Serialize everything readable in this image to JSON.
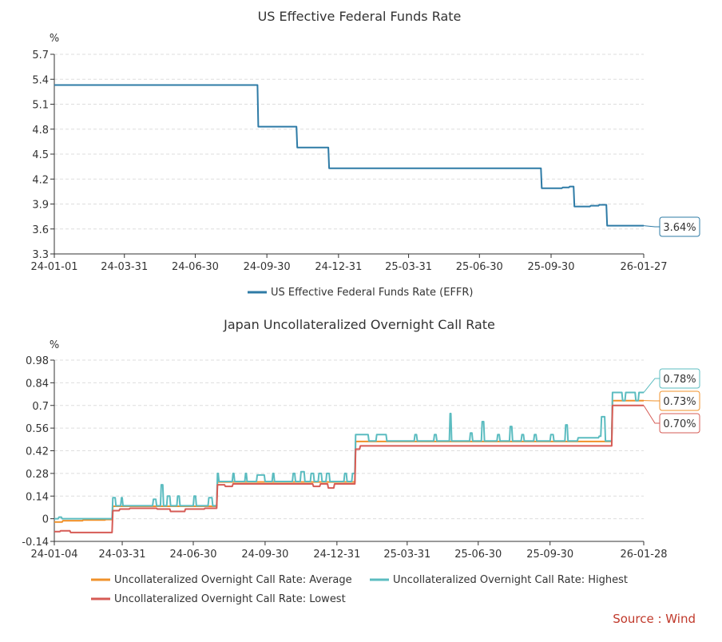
{
  "source": "Source : Wind",
  "chart_data": [
    {
      "type": "line",
      "title": "US Effective Federal Funds Rate",
      "ylabel": "%",
      "ylim": [
        3.3,
        5.7
      ],
      "yticks": [
        "3.3",
        "3.6",
        "3.9",
        "4.2",
        "4.5",
        "4.8",
        "5.1",
        "5.4",
        "5.7"
      ],
      "xlim": [
        "2024-01-01",
        "2026-01-27"
      ],
      "xticks": [
        {
          "label": "24-01-01",
          "date": "2024-01-01"
        },
        {
          "label": "24-03-31",
          "date": "2024-03-31"
        },
        {
          "label": "24-06-30",
          "date": "2024-06-30"
        },
        {
          "label": "24-09-30",
          "date": "2024-09-30"
        },
        {
          "label": "24-12-31",
          "date": "2024-12-31"
        },
        {
          "label": "25-03-31",
          "date": "2025-03-31"
        },
        {
          "label": "25-06-30",
          "date": "2025-06-30"
        },
        {
          "label": "25-09-30",
          "date": "2025-09-30"
        },
        {
          "label": "26-01-27",
          "date": "2026-01-27"
        }
      ],
      "grid": true,
      "legend_position": "bottom",
      "series": [
        {
          "name": "US Effective Federal Funds Rate (EFFR)",
          "color": "#2e7ba6",
          "end_label": "3.64%",
          "points": [
            [
              "2024-01-01",
              5.33
            ],
            [
              "2024-09-19",
              4.83
            ],
            [
              "2024-11-08",
              4.58
            ],
            [
              "2024-12-19",
              4.33
            ],
            [
              "2025-09-18",
              4.09
            ],
            [
              "2025-10-15",
              4.1
            ],
            [
              "2025-10-24",
              4.11
            ],
            [
              "2025-10-30",
              3.87
            ],
            [
              "2025-11-20",
              3.88
            ],
            [
              "2025-12-01",
              3.89
            ],
            [
              "2025-12-11",
              3.64
            ],
            [
              "2026-01-27",
              3.64
            ]
          ]
        }
      ]
    },
    {
      "type": "line",
      "title": "Japan Uncollateralized Overnight Call Rate",
      "ylabel": "%",
      "ylim": [
        -0.14,
        0.98
      ],
      "yticks": [
        "-0.14",
        "0",
        "0.14",
        "0.28",
        "0.42",
        "0.56",
        "0.7",
        "0.84",
        "0.98"
      ],
      "xlim": [
        "2024-01-04",
        "2026-01-28"
      ],
      "xticks": [
        {
          "label": "24-01-04",
          "date": "2024-01-04"
        },
        {
          "label": "24-03-31",
          "date": "2024-03-31"
        },
        {
          "label": "24-06-30",
          "date": "2024-06-30"
        },
        {
          "label": "24-09-30",
          "date": "2024-09-30"
        },
        {
          "label": "24-12-31",
          "date": "2024-12-31"
        },
        {
          "label": "25-03-31",
          "date": "2025-03-31"
        },
        {
          "label": "25-06-30",
          "date": "2025-06-30"
        },
        {
          "label": "25-09-30",
          "date": "2025-09-30"
        },
        {
          "label": "26-01-28",
          "date": "2026-01-28"
        }
      ],
      "grid": true,
      "legend_position": "bottom",
      "series": [
        {
          "name": "Uncollateralized Overnight Call Rate: Average",
          "color": "#f0912a",
          "end_label": "0.73%",
          "points": [
            [
              "2024-01-04",
              -0.02
            ],
            [
              "2024-01-15",
              -0.012
            ],
            [
              "2024-02-10",
              -0.008
            ],
            [
              "2024-03-10",
              -0.005
            ],
            [
              "2024-03-19",
              0.077
            ],
            [
              "2024-07-31",
              0.227
            ],
            [
              "2025-01-24",
              0.477
            ],
            [
              "2025-12-19",
              0.73
            ],
            [
              "2026-01-28",
              0.73
            ]
          ]
        },
        {
          "name": "Uncollateralized Overnight Call Rate: Highest",
          "color": "#5bbcc0",
          "end_label": "0.78%",
          "points": [
            [
              "2024-01-04",
              0.0
            ],
            [
              "2024-01-10",
              0.01
            ],
            [
              "2024-01-14",
              0.0
            ],
            [
              "2024-03-19",
              0.13
            ],
            [
              "2024-03-23",
              0.08
            ],
            [
              "2024-03-30",
              0.13
            ],
            [
              "2024-04-01",
              0.08
            ],
            [
              "2024-05-10",
              0.12
            ],
            [
              "2024-05-14",
              0.08
            ],
            [
              "2024-05-20",
              0.21
            ],
            [
              "2024-05-23",
              0.08
            ],
            [
              "2024-05-28",
              0.14
            ],
            [
              "2024-06-01",
              0.08
            ],
            [
              "2024-06-10",
              0.14
            ],
            [
              "2024-06-13",
              0.08
            ],
            [
              "2024-07-01",
              0.14
            ],
            [
              "2024-07-04",
              0.08
            ],
            [
              "2024-07-20",
              0.13
            ],
            [
              "2024-07-25",
              0.08
            ],
            [
              "2024-07-31",
              0.28
            ],
            [
              "2024-08-02",
              0.23
            ],
            [
              "2024-08-20",
              0.28
            ],
            [
              "2024-08-22",
              0.23
            ],
            [
              "2024-09-05",
              0.28
            ],
            [
              "2024-09-07",
              0.23
            ],
            [
              "2024-09-20",
              0.27
            ],
            [
              "2024-09-30",
              0.23
            ],
            [
              "2024-10-10",
              0.28
            ],
            [
              "2024-10-12",
              0.23
            ],
            [
              "2024-11-05",
              0.28
            ],
            [
              "2024-11-08",
              0.23
            ],
            [
              "2024-11-15",
              0.29
            ],
            [
              "2024-11-20",
              0.23
            ],
            [
              "2024-11-28",
              0.28
            ],
            [
              "2024-12-02",
              0.23
            ],
            [
              "2024-12-08",
              0.28
            ],
            [
              "2024-12-12",
              0.23
            ],
            [
              "2024-12-18",
              0.28
            ],
            [
              "2024-12-22",
              0.23
            ],
            [
              "2025-01-10",
              0.28
            ],
            [
              "2025-01-13",
              0.23
            ],
            [
              "2025-01-20",
              0.28
            ],
            [
              "2025-01-24",
              0.52
            ],
            [
              "2025-02-10",
              0.48
            ],
            [
              "2025-02-20",
              0.52
            ],
            [
              "2025-03-05",
              0.48
            ],
            [
              "2025-04-10",
              0.52
            ],
            [
              "2025-04-13",
              0.48
            ],
            [
              "2025-05-05",
              0.52
            ],
            [
              "2025-05-08",
              0.48
            ],
            [
              "2025-05-25",
              0.65
            ],
            [
              "2025-05-27",
              0.48
            ],
            [
              "2025-06-20",
              0.53
            ],
            [
              "2025-06-23",
              0.48
            ],
            [
              "2025-07-05",
              0.6
            ],
            [
              "2025-07-08",
              0.48
            ],
            [
              "2025-07-25",
              0.52
            ],
            [
              "2025-07-28",
              0.48
            ],
            [
              "2025-08-10",
              0.57
            ],
            [
              "2025-08-13",
              0.48
            ],
            [
              "2025-08-25",
              0.52
            ],
            [
              "2025-08-28",
              0.48
            ],
            [
              "2025-09-10",
              0.52
            ],
            [
              "2025-09-13",
              0.48
            ],
            [
              "2025-10-01",
              0.52
            ],
            [
              "2025-10-05",
              0.48
            ],
            [
              "2025-10-20",
              0.58
            ],
            [
              "2025-10-23",
              0.48
            ],
            [
              "2025-11-05",
              0.5
            ],
            [
              "2025-12-02",
              0.51
            ],
            [
              "2025-12-05",
              0.63
            ],
            [
              "2025-12-10",
              0.48
            ],
            [
              "2025-12-19",
              0.78
            ],
            [
              "2026-01-01",
              0.73
            ],
            [
              "2026-01-05",
              0.78
            ],
            [
              "2026-01-18",
              0.73
            ],
            [
              "2026-01-22",
              0.78
            ],
            [
              "2026-01-28",
              0.78
            ]
          ]
        },
        {
          "name": "Uncollateralized Overnight Call Rate: Lowest",
          "color": "#d65b55",
          "end_label": "0.70%",
          "points": [
            [
              "2024-01-04",
              -0.08
            ],
            [
              "2024-01-12",
              -0.075
            ],
            [
              "2024-01-25",
              -0.085
            ],
            [
              "2024-03-19",
              0.05
            ],
            [
              "2024-03-28",
              0.06
            ],
            [
              "2024-04-10",
              0.065
            ],
            [
              "2024-05-15",
              0.06
            ],
            [
              "2024-06-01",
              0.045
            ],
            [
              "2024-06-20",
              0.06
            ],
            [
              "2024-07-15",
              0.065
            ],
            [
              "2024-07-31",
              0.21
            ],
            [
              "2024-08-10",
              0.2
            ],
            [
              "2024-08-20",
              0.215
            ],
            [
              "2024-12-01",
              0.2
            ],
            [
              "2024-12-10",
              0.215
            ],
            [
              "2024-12-20",
              0.19
            ],
            [
              "2024-12-28",
              0.215
            ],
            [
              "2025-01-24",
              0.43
            ],
            [
              "2025-01-30",
              0.45
            ],
            [
              "2025-12-19",
              0.7
            ],
            [
              "2026-01-28",
              0.7
            ]
          ]
        }
      ]
    }
  ]
}
